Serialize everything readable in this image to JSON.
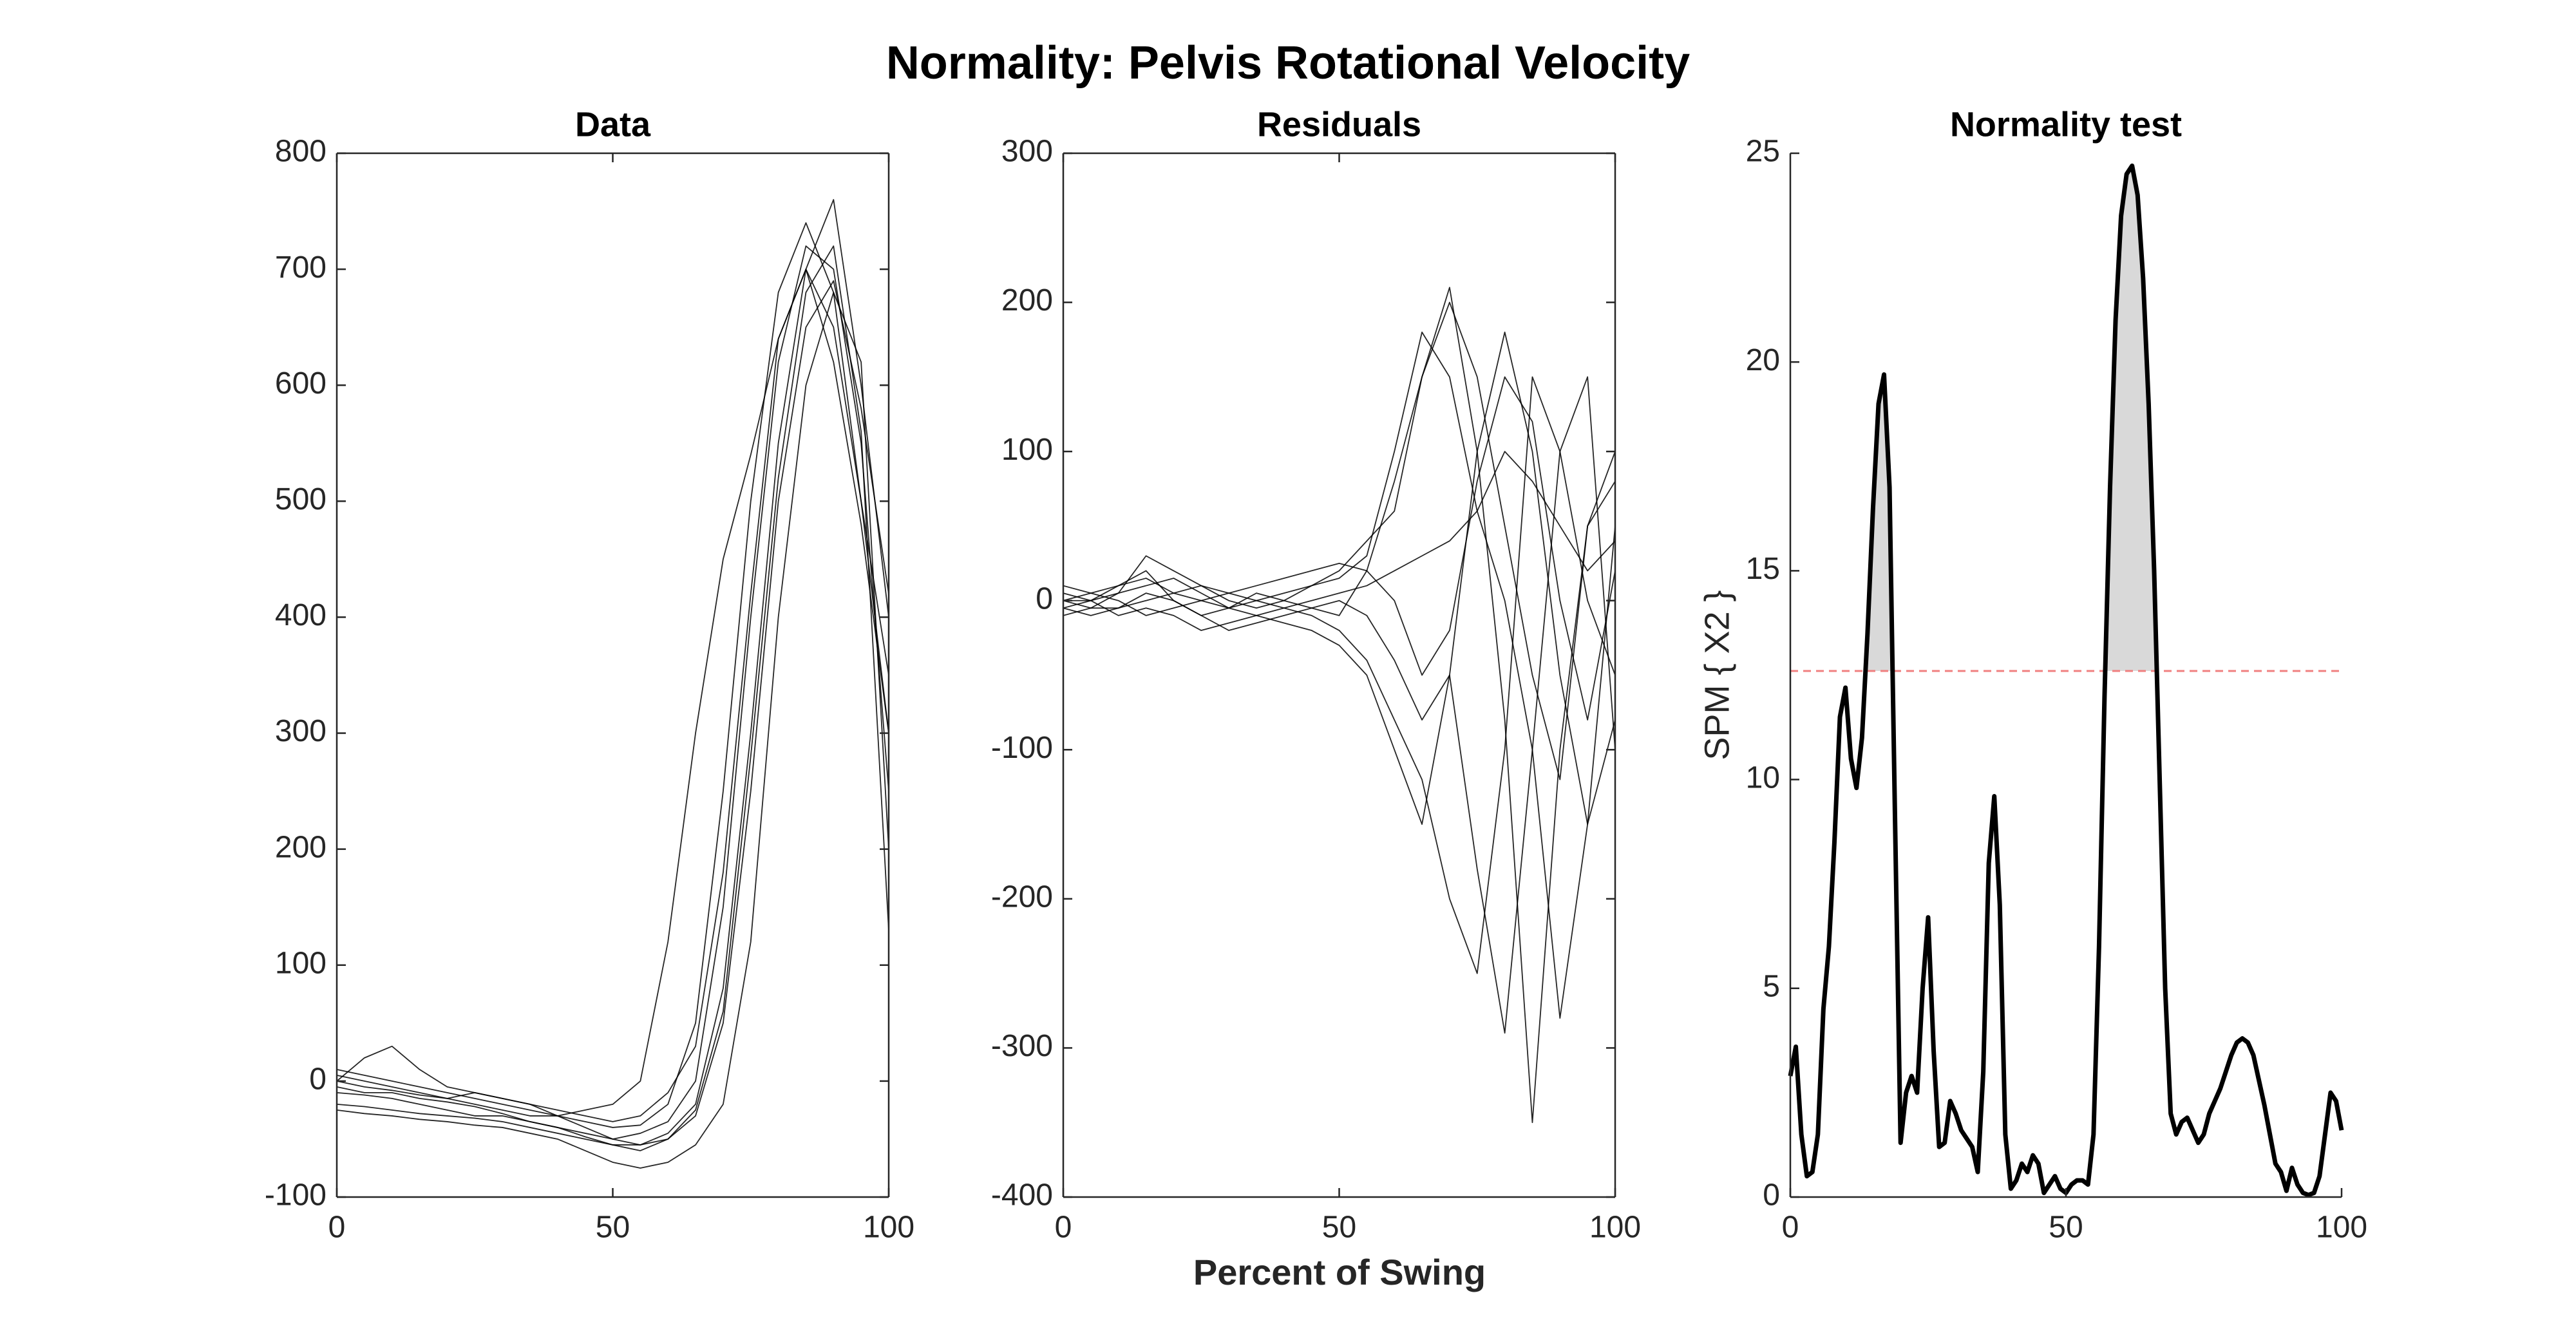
{
  "title": "Normality: Pelvis Rotational Velocity",
  "xlabel": "Percent of Swing",
  "chart_data": [
    {
      "type": "line",
      "title": "Data",
      "color": "#000000",
      "x": [
        0,
        5,
        10,
        15,
        20,
        25,
        30,
        35,
        40,
        45,
        50,
        55,
        60,
        65,
        70,
        75,
        80,
        85,
        90,
        95,
        100
      ],
      "series": [
        {
          "values": [
            0,
            -5,
            -8,
            -12,
            -15,
            -20,
            -25,
            -30,
            -30,
            -25,
            -20,
            0,
            120,
            300,
            450,
            540,
            640,
            700,
            620,
            480,
            300
          ]
        },
        {
          "values": [
            10,
            5,
            0,
            -5,
            -10,
            -15,
            -20,
            -25,
            -30,
            -35,
            -40,
            -38,
            -20,
            50,
            250,
            500,
            680,
            740,
            680,
            500,
            350
          ]
        },
        {
          "values": [
            -5,
            -10,
            -10,
            -15,
            -18,
            -22,
            -28,
            -35,
            -40,
            -45,
            -50,
            -45,
            -35,
            0,
            150,
            400,
            620,
            720,
            700,
            550,
            250
          ]
        },
        {
          "values": [
            -20,
            -22,
            -25,
            -28,
            -30,
            -32,
            -35,
            -40,
            -45,
            -50,
            -55,
            -55,
            -45,
            -20,
            80,
            300,
            550,
            700,
            760,
            600,
            400
          ]
        },
        {
          "values": [
            0,
            20,
            30,
            10,
            -5,
            -10,
            -15,
            -20,
            -30,
            -40,
            -50,
            -55,
            -50,
            -30,
            50,
            250,
            500,
            650,
            690,
            580,
            420
          ]
        },
        {
          "values": [
            -25,
            -28,
            -30,
            -33,
            -35,
            -38,
            -40,
            -45,
            -50,
            -60,
            -70,
            -75,
            -70,
            -55,
            -20,
            120,
            400,
            600,
            680,
            620,
            200
          ]
        },
        {
          "values": [
            5,
            0,
            -5,
            -10,
            -15,
            -10,
            -15,
            -20,
            -25,
            -30,
            -35,
            -30,
            -10,
            30,
            180,
            420,
            640,
            700,
            650,
            500,
            300
          ]
        },
        {
          "values": [
            -10,
            -12,
            -15,
            -20,
            -25,
            -30,
            -30,
            -35,
            -40,
            -48,
            -55,
            -60,
            -50,
            -25,
            60,
            280,
            520,
            680,
            720,
            560,
            130
          ]
        }
      ],
      "xlim": [
        0,
        100
      ],
      "xticks": [
        0,
        50,
        100
      ],
      "ylim": [
        -100,
        800
      ],
      "yticks": [
        -100,
        0,
        100,
        200,
        300,
        400,
        500,
        600,
        700,
        800
      ],
      "grid": false
    },
    {
      "type": "line",
      "title": "Residuals",
      "color": "#000000",
      "x": [
        0,
        5,
        10,
        15,
        20,
        25,
        30,
        35,
        40,
        45,
        50,
        55,
        60,
        65,
        70,
        75,
        80,
        85,
        90,
        95,
        100
      ],
      "series": [
        {
          "values": [
            0,
            5,
            10,
            15,
            5,
            0,
            -5,
            0,
            5,
            10,
            15,
            30,
            100,
            180,
            150,
            60,
            0,
            -100,
            -280,
            -150,
            50
          ]
        },
        {
          "values": [
            -5,
            0,
            10,
            20,
            0,
            -10,
            -5,
            5,
            0,
            -5,
            -10,
            20,
            80,
            150,
            200,
            150,
            50,
            -50,
            -120,
            50,
            100
          ]
        },
        {
          "values": [
            5,
            0,
            -10,
            -5,
            -10,
            -20,
            -15,
            -10,
            -15,
            -20,
            -30,
            -50,
            -100,
            -150,
            -50,
            100,
            180,
            100,
            -50,
            -150,
            -80
          ]
        },
        {
          "values": [
            0,
            -5,
            -5,
            0,
            5,
            10,
            5,
            0,
            -5,
            -10,
            -20,
            -40,
            -80,
            -120,
            -200,
            -250,
            -100,
            150,
            100,
            0,
            -50
          ]
        },
        {
          "values": [
            -10,
            -5,
            5,
            30,
            20,
            10,
            0,
            -5,
            0,
            10,
            20,
            40,
            60,
            150,
            210,
            100,
            -80,
            -350,
            -100,
            50,
            80
          ]
        },
        {
          "values": [
            10,
            5,
            0,
            -10,
            -5,
            0,
            5,
            10,
            15,
            20,
            25,
            20,
            0,
            -50,
            -20,
            80,
            150,
            120,
            0,
            -80,
            20
          ]
        },
        {
          "values": [
            -5,
            -10,
            -5,
            5,
            0,
            -10,
            -20,
            -15,
            -10,
            -5,
            0,
            -10,
            -40,
            -80,
            -50,
            -180,
            -290,
            -100,
            100,
            150,
            -100
          ]
        },
        {
          "values": [
            0,
            0,
            5,
            10,
            15,
            5,
            -5,
            -10,
            -5,
            0,
            5,
            10,
            20,
            30,
            40,
            60,
            100,
            80,
            50,
            20,
            40
          ]
        }
      ],
      "xlim": [
        0,
        100
      ],
      "xticks": [
        0,
        50,
        100
      ],
      "ylim": [
        -400,
        300
      ],
      "yticks": [
        -400,
        -300,
        -200,
        -100,
        0,
        100,
        200,
        300
      ],
      "grid": false
    },
    {
      "type": "spm",
      "title": "Normality test",
      "ylabel": "SPM { X2 }",
      "color": "#000000",
      "threshold": 12.6,
      "threshold_color": "#f08080",
      "fill_color": "#d9d9d9",
      "x": [
        0,
        1,
        2,
        3,
        4,
        5,
        6,
        7,
        8,
        9,
        10,
        11,
        12,
        13,
        14,
        15,
        16,
        17,
        18,
        19,
        20,
        21,
        22,
        23,
        24,
        25,
        26,
        27,
        28,
        29,
        30,
        31,
        32,
        33,
        34,
        35,
        36,
        37,
        38,
        39,
        40,
        41,
        42,
        43,
        44,
        45,
        46,
        47,
        48,
        49,
        50,
        51,
        52,
        53,
        54,
        55,
        56,
        57,
        58,
        59,
        60,
        61,
        62,
        63,
        64,
        65,
        66,
        67,
        68,
        69,
        70,
        71,
        72,
        73,
        74,
        75,
        76,
        77,
        78,
        79,
        80,
        81,
        82,
        83,
        84,
        85,
        86,
        87,
        88,
        89,
        90,
        91,
        92,
        93,
        94,
        95,
        96,
        97,
        98,
        99,
        100
      ],
      "series": [
        {
          "values": [
            2.9,
            3.6,
            1.5,
            0.5,
            0.6,
            1.5,
            4.5,
            6,
            8.5,
            11.5,
            12.2,
            10.5,
            9.8,
            11,
            13.5,
            16.5,
            19,
            19.7,
            17,
            9,
            1.3,
            2.5,
            2.9,
            2.5,
            5,
            6.7,
            3.5,
            1.2,
            1.3,
            2.3,
            2,
            1.6,
            1.4,
            1.2,
            0.6,
            3,
            8,
            9.6,
            7,
            1.5,
            0.2,
            0.4,
            0.8,
            0.6,
            1,
            0.8,
            0.1,
            0.3,
            0.5,
            0.2,
            0.1,
            0.3,
            0.4,
            0.4,
            0.3,
            1.5,
            6,
            12,
            17,
            21,
            23.5,
            24.5,
            24.7,
            24,
            22,
            19,
            15,
            10,
            5,
            2,
            1.5,
            1.8,
            1.9,
            1.6,
            1.3,
            1.5,
            2,
            2.3,
            2.6,
            3,
            3.4,
            3.7,
            3.8,
            3.7,
            3.4,
            2.8,
            2.2,
            1.5,
            0.8,
            0.6,
            0.15,
            0.7,
            0.3,
            0.1,
            0.05,
            0.1,
            0.5,
            1.5,
            2.5,
            2.3,
            1.6
          ]
        }
      ],
      "xlim": [
        0,
        100
      ],
      "xticks": [
        0,
        50,
        100
      ],
      "ylim": [
        0,
        25
      ],
      "yticks": [
        0,
        5,
        10,
        15,
        20,
        25
      ],
      "grid": false
    }
  ]
}
